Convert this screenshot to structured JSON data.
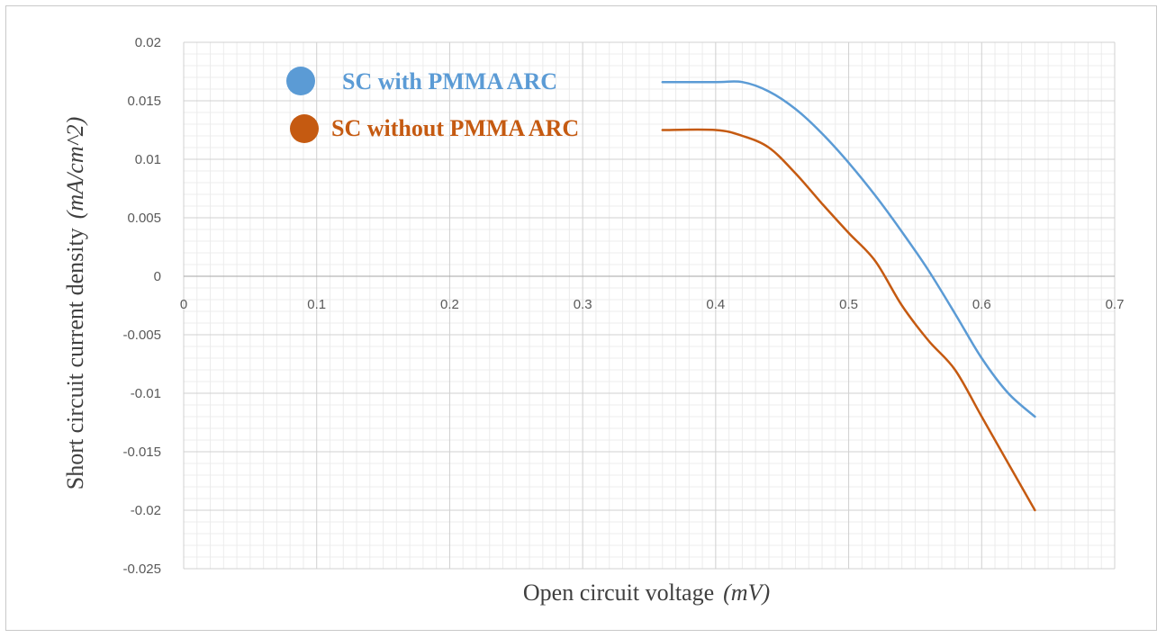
{
  "chart_data": {
    "type": "line",
    "title": "",
    "xlabel": "Open circuit voltage",
    "xlabel_unit": "(mV)",
    "ylabel": "Short circuit current density",
    "ylabel_unit": "(mA/cm^2)",
    "xlim": [
      0,
      0.7
    ],
    "ylim": [
      -0.025,
      0.02
    ],
    "x_ticks": [
      "0",
      "0.1",
      "0.2",
      "0.3",
      "0.4",
      "0.5",
      "0.6",
      "0.7"
    ],
    "y_ticks": [
      "0.02",
      "0.015",
      "0.01",
      "0.005",
      "0",
      "-0.005",
      "-0.01",
      "-0.015",
      "-0.02",
      "-0.025"
    ],
    "grid": true,
    "legend_position": "top-left",
    "series": [
      {
        "name": "SC with PMMA ARC",
        "color": "#5b9bd5",
        "x": [
          0.36,
          0.4,
          0.42,
          0.44,
          0.46,
          0.48,
          0.5,
          0.52,
          0.54,
          0.56,
          0.58,
          0.6,
          0.62,
          0.64
        ],
        "y": [
          0.0166,
          0.0166,
          0.0166,
          0.0158,
          0.0143,
          0.0122,
          0.0097,
          0.0069,
          0.0038,
          0.0005,
          -0.0032,
          -0.007,
          -0.01,
          -0.012
        ]
      },
      {
        "name": "SC without PMMA ARC",
        "color": "#c55a11",
        "x": [
          0.36,
          0.4,
          0.42,
          0.44,
          0.46,
          0.48,
          0.5,
          0.52,
          0.54,
          0.56,
          0.58,
          0.6,
          0.62,
          0.64
        ],
        "y": [
          0.0125,
          0.0125,
          0.012,
          0.011,
          0.0088,
          0.0062,
          0.0037,
          0.0013,
          -0.0025,
          -0.0055,
          -0.008,
          -0.012,
          -0.016,
          -0.02
        ]
      }
    ]
  }
}
